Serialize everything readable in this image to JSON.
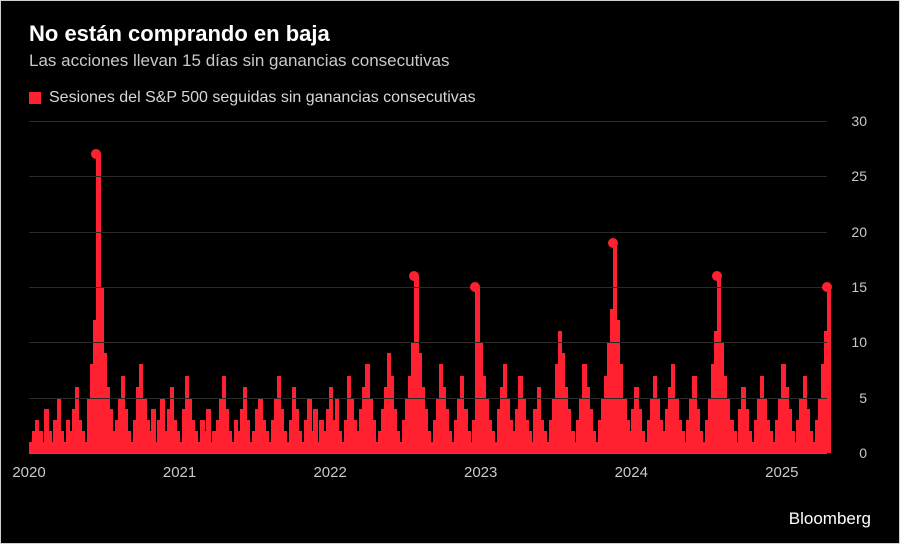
{
  "title": "No están comprando en baja",
  "subtitle": "Las acciones llevan 15 días sin ganancias consecutivas",
  "legend": {
    "swatch_color": "#ff2030",
    "label": "Sesiones del S&P 500 seguidas sin ganancias consecutivas"
  },
  "attribution": "Bloomberg",
  "chart": {
    "type": "bar",
    "background_color": "#000000",
    "series_color": "#ff2030",
    "marker_color": "#ff2030",
    "grid_color": "#2a2a2a",
    "zero_line_color": "#6a6a6a",
    "text_color": "#c9c9c9",
    "label_fontsize": 14,
    "ylim": [
      0,
      30
    ],
    "ytick_step": 5,
    "y_ticks": [
      0,
      5,
      10,
      15,
      20,
      25,
      30
    ],
    "x_domain": [
      2020.0,
      2025.3
    ],
    "x_ticks": [
      2020,
      2021,
      2022,
      2023,
      2024,
      2025
    ],
    "values": [
      1,
      2,
      3,
      2,
      1,
      4,
      2,
      1,
      3,
      5,
      2,
      1,
      3,
      2,
      4,
      6,
      3,
      2,
      1,
      5,
      8,
      12,
      27,
      15,
      9,
      6,
      4,
      2,
      3,
      5,
      7,
      4,
      2,
      1,
      3,
      6,
      8,
      5,
      3,
      2,
      4,
      1,
      3,
      5,
      2,
      4,
      6,
      3,
      2,
      1,
      4,
      7,
      5,
      3,
      2,
      1,
      3,
      2,
      4,
      1,
      2,
      3,
      5,
      7,
      4,
      2,
      1,
      3,
      2,
      4,
      6,
      3,
      1,
      2,
      4,
      5,
      3,
      2,
      1,
      3,
      5,
      7,
      4,
      2,
      1,
      3,
      6,
      4,
      2,
      1,
      3,
      5,
      2,
      4,
      1,
      3,
      2,
      4,
      6,
      3,
      5,
      2,
      1,
      3,
      7,
      5,
      3,
      2,
      4,
      6,
      8,
      5,
      3,
      1,
      2,
      4,
      6,
      9,
      7,
      4,
      2,
      1,
      3,
      5,
      7,
      10,
      16,
      9,
      6,
      4,
      2,
      1,
      3,
      5,
      8,
      6,
      4,
      2,
      1,
      3,
      5,
      7,
      4,
      2,
      1,
      3,
      15,
      10,
      7,
      5,
      3,
      2,
      1,
      4,
      6,
      8,
      5,
      3,
      2,
      4,
      7,
      5,
      3,
      2,
      1,
      4,
      6,
      3,
      2,
      1,
      3,
      5,
      8,
      11,
      9,
      6,
      4,
      2,
      1,
      3,
      5,
      8,
      6,
      4,
      2,
      1,
      3,
      5,
      7,
      10,
      13,
      19,
      12,
      8,
      5,
      3,
      2,
      4,
      6,
      4,
      2,
      1,
      3,
      5,
      7,
      5,
      3,
      2,
      4,
      6,
      8,
      5,
      3,
      2,
      1,
      3,
      5,
      7,
      4,
      2,
      1,
      3,
      5,
      8,
      11,
      16,
      10,
      7,
      5,
      3,
      2,
      1,
      4,
      6,
      4,
      2,
      1,
      3,
      5,
      7,
      5,
      3,
      2,
      1,
      3,
      5,
      8,
      6,
      4,
      2,
      1,
      3,
      5,
      7,
      4,
      2,
      1,
      3,
      5,
      8,
      11,
      15
    ],
    "markers": [
      {
        "i": 22,
        "v": 27
      },
      {
        "i": 126,
        "v": 16
      },
      {
        "i": 146,
        "v": 15
      },
      {
        "i": 191,
        "v": 19
      },
      {
        "i": 225,
        "v": 16
      },
      {
        "i": 261,
        "v": 15
      }
    ]
  }
}
